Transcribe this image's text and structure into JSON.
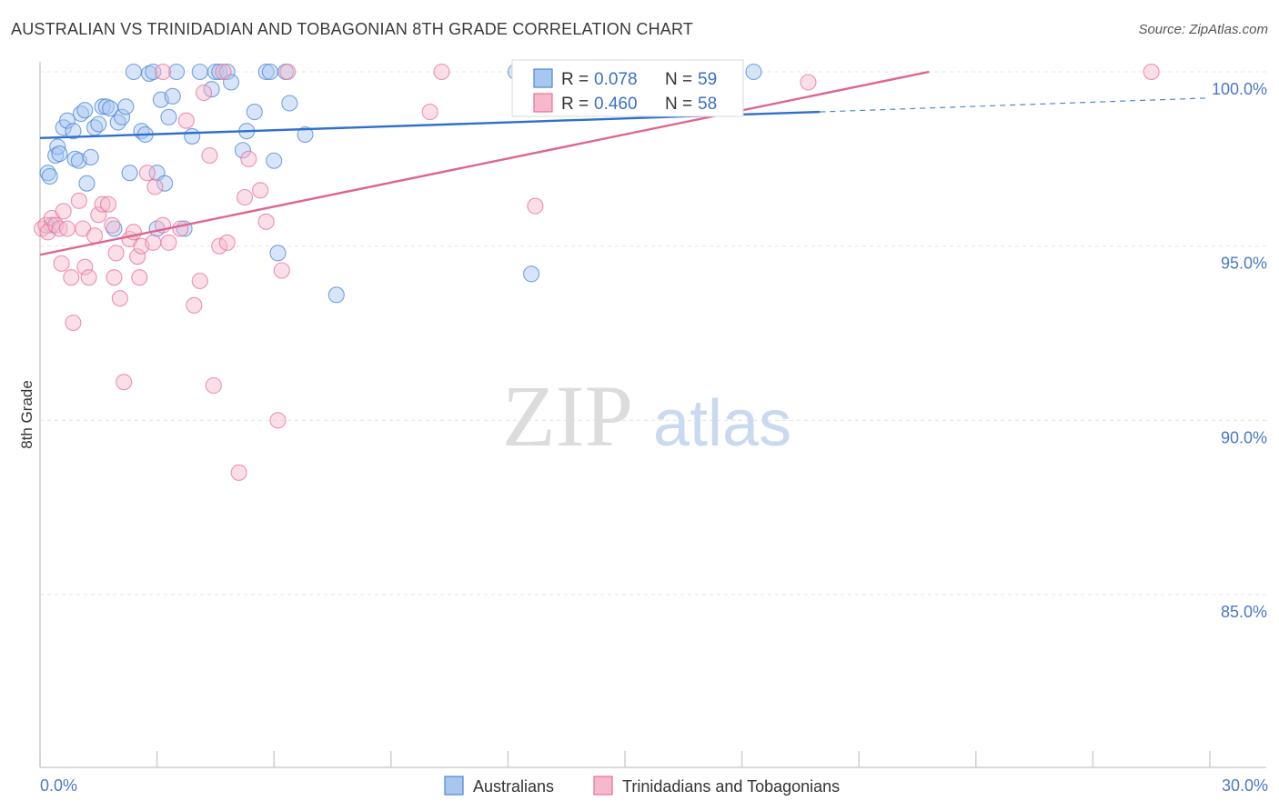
{
  "title": "AUSTRALIAN VS TRINIDADIAN AND TOBAGONIAN 8TH GRADE CORRELATION CHART",
  "source": "Source: ZipAtlas.com",
  "watermark": {
    "zip": "ZIP",
    "atlas": "atlas"
  },
  "colors": {
    "blue": "#4a86d8",
    "pink": "#e8709a",
    "blue_fill": "#a9c6ef",
    "pink_fill": "#f5b8cc",
    "tick_text": "#4a78c8"
  },
  "legend": {
    "r_label": "R =",
    "n_label": "N =",
    "blue": {
      "r": "0.078",
      "n": "59"
    },
    "pink": {
      "r": "0.460",
      "n": "58"
    }
  },
  "bottom_legend": {
    "blue": "Australians",
    "pink": "Trinidadians and Tobagonians"
  },
  "chart_data": {
    "type": "scatter",
    "title": "AUSTRALIAN VS TRINIDADIAN AND TOBAGONIAN 8TH GRADE CORRELATION CHART",
    "xlabel": "",
    "ylabel": "8th Grade",
    "xlim": [
      0,
      30
    ],
    "ylim": [
      80.5,
      100.8
    ],
    "x_tick_labels": {
      "min": "0.0%",
      "max": "30.0%"
    },
    "y_ticks": [
      {
        "value": 100,
        "label": "100.0%"
      },
      {
        "value": 95,
        "label": "95.0%"
      },
      {
        "value": 90,
        "label": "90.0%"
      },
      {
        "value": 85,
        "label": "85.0%"
      }
    ],
    "series": [
      {
        "name": "Australians",
        "color": "#4a86d8",
        "trend": {
          "x0": 0,
          "y0": 98.1,
          "x1": 20,
          "y1": 98.85,
          "dashed_to_x": 30,
          "dashed_to_y": 99.25
        },
        "points": [
          [
            0.2,
            97.1
          ],
          [
            0.25,
            97.0
          ],
          [
            0.3,
            95.6
          ],
          [
            0.4,
            97.6
          ],
          [
            0.45,
            97.85
          ],
          [
            0.5,
            97.65
          ],
          [
            0.6,
            98.4
          ],
          [
            0.7,
            98.6
          ],
          [
            0.85,
            98.3
          ],
          [
            0.9,
            97.5
          ],
          [
            1.0,
            97.45
          ],
          [
            1.05,
            98.8
          ],
          [
            1.15,
            98.9
          ],
          [
            1.2,
            96.8
          ],
          [
            1.3,
            97.55
          ],
          [
            1.4,
            98.4
          ],
          [
            1.5,
            98.5
          ],
          [
            1.6,
            99.0
          ],
          [
            1.7,
            99.0
          ],
          [
            1.8,
            98.95
          ],
          [
            1.9,
            95.5
          ],
          [
            2.0,
            98.55
          ],
          [
            2.1,
            98.7
          ],
          [
            2.2,
            99.0
          ],
          [
            2.3,
            97.1
          ],
          [
            2.4,
            100.0
          ],
          [
            2.6,
            98.3
          ],
          [
            2.7,
            98.2
          ],
          [
            2.8,
            99.95
          ],
          [
            2.9,
            100.0
          ],
          [
            3.0,
            97.1
          ],
          [
            3.0,
            95.5
          ],
          [
            3.1,
            99.2
          ],
          [
            3.2,
            96.8
          ],
          [
            3.3,
            98.7
          ],
          [
            3.4,
            99.3
          ],
          [
            3.5,
            100.0
          ],
          [
            3.7,
            95.5
          ],
          [
            3.9,
            98.15
          ],
          [
            4.1,
            100.0
          ],
          [
            4.4,
            99.5
          ],
          [
            4.5,
            100.0
          ],
          [
            4.6,
            100.0
          ],
          [
            4.8,
            100.0
          ],
          [
            4.9,
            99.7
          ],
          [
            5.2,
            97.75
          ],
          [
            5.3,
            98.3
          ],
          [
            5.5,
            98.85
          ],
          [
            5.8,
            100.0
          ],
          [
            5.9,
            100.0
          ],
          [
            6.0,
            97.45
          ],
          [
            6.1,
            94.8
          ],
          [
            6.3,
            100.0
          ],
          [
            6.4,
            99.1
          ],
          [
            6.8,
            98.2
          ],
          [
            7.6,
            93.6
          ],
          [
            12.6,
            94.2
          ],
          [
            18.3,
            100.0
          ],
          [
            12.2,
            100.0
          ]
        ]
      },
      {
        "name": "Trinidadians and Tobagonians",
        "color": "#e8709a",
        "trend": {
          "x0": 0,
          "y0": 94.75,
          "x1": 22.8,
          "y1": 100.0
        },
        "points": [
          [
            0.05,
            95.5
          ],
          [
            0.15,
            95.6
          ],
          [
            0.2,
            95.4
          ],
          [
            0.3,
            95.8
          ],
          [
            0.4,
            95.6
          ],
          [
            0.5,
            95.5
          ],
          [
            0.55,
            94.5
          ],
          [
            0.6,
            96.0
          ],
          [
            0.7,
            95.5
          ],
          [
            0.8,
            94.1
          ],
          [
            0.85,
            92.8
          ],
          [
            1.0,
            96.3
          ],
          [
            1.1,
            95.5
          ],
          [
            1.15,
            94.4
          ],
          [
            1.25,
            94.1
          ],
          [
            1.4,
            95.3
          ],
          [
            1.5,
            95.9
          ],
          [
            1.6,
            96.2
          ],
          [
            1.75,
            96.2
          ],
          [
            1.85,
            95.6
          ],
          [
            1.9,
            94.1
          ],
          [
            1.95,
            94.8
          ],
          [
            2.05,
            93.5
          ],
          [
            2.15,
            91.1
          ],
          [
            2.3,
            95.2
          ],
          [
            2.4,
            95.4
          ],
          [
            2.5,
            94.7
          ],
          [
            2.55,
            94.1
          ],
          [
            2.6,
            95.0
          ],
          [
            2.75,
            97.1
          ],
          [
            2.9,
            95.1
          ],
          [
            2.95,
            96.7
          ],
          [
            3.15,
            95.6
          ],
          [
            3.3,
            95.1
          ],
          [
            3.6,
            95.5
          ],
          [
            3.75,
            98.6
          ],
          [
            3.95,
            93.3
          ],
          [
            4.1,
            94.0
          ],
          [
            4.2,
            99.4
          ],
          [
            4.35,
            97.6
          ],
          [
            4.45,
            91.0
          ],
          [
            4.6,
            95.0
          ],
          [
            4.7,
            100.0
          ],
          [
            4.8,
            95.1
          ],
          [
            5.1,
            88.5
          ],
          [
            5.25,
            96.4
          ],
          [
            5.35,
            97.5
          ],
          [
            5.65,
            96.6
          ],
          [
            5.8,
            95.7
          ],
          [
            6.1,
            90.0
          ],
          [
            6.35,
            100.0
          ],
          [
            6.2,
            94.3
          ],
          [
            10.0,
            98.85
          ],
          [
            10.3,
            100.0
          ],
          [
            12.7,
            96.15
          ],
          [
            19.7,
            99.7
          ],
          [
            28.5,
            100.0
          ],
          [
            3.15,
            100.0
          ]
        ]
      }
    ]
  }
}
